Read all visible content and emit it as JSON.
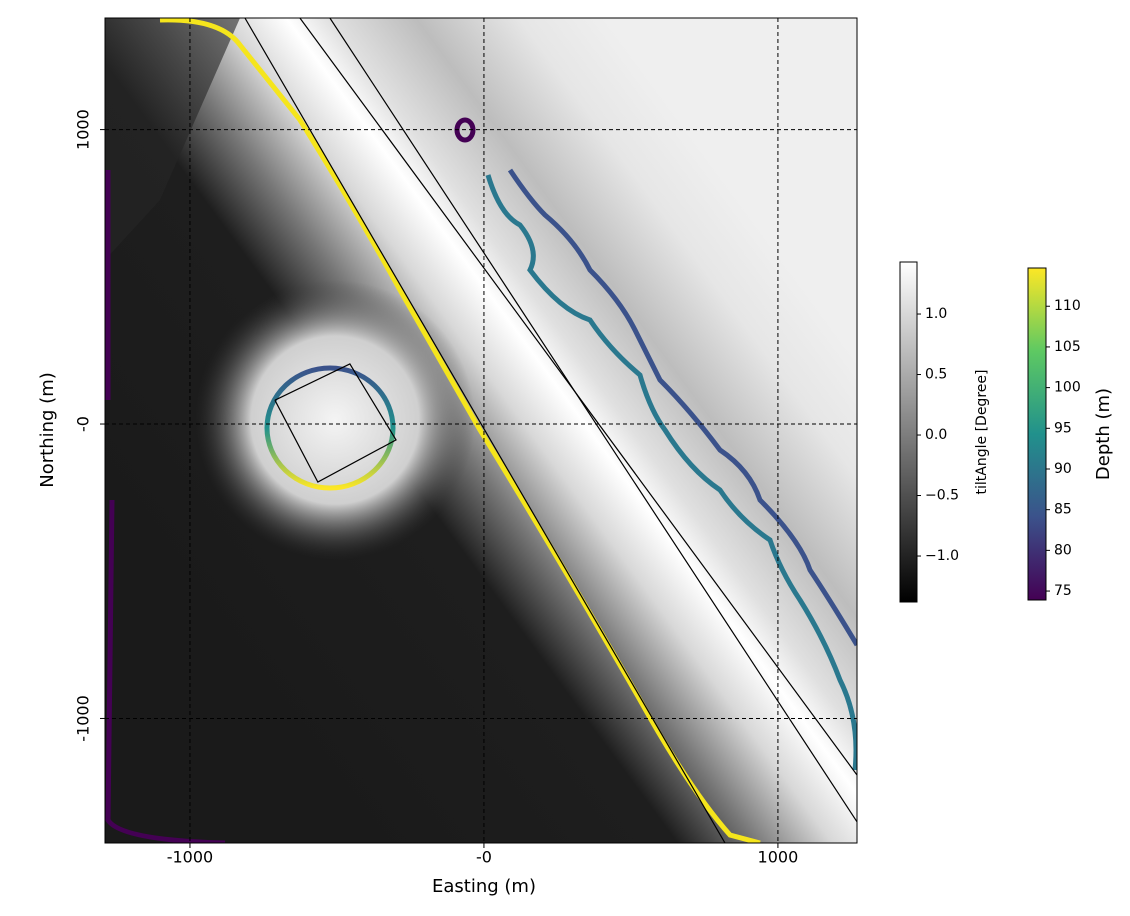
{
  "chart_data": {
    "type": "map",
    "x_label": "Easting (m)",
    "y_label": "Northing (m)",
    "xlim": [
      -1289,
      1269
    ],
    "ylim": [
      -1423,
      1379
    ],
    "xticks": [
      -1000,
      {
        "value": 0,
        "label": "-0"
      },
      1000
    ],
    "yticks": [
      -1000,
      {
        "value": 0,
        "label": "-0"
      },
      1000
    ],
    "grid": true,
    "lines": [
      {
        "color": "#000000",
        "x": [
          -813,
          820
        ],
        "y": [
          1379,
          -1423
        ]
      },
      {
        "color": "#000000",
        "x": [
          -626,
          1269
        ],
        "y": [
          1379,
          -1192
        ]
      },
      {
        "color": "#000000",
        "x": [
          -524,
          1269
        ],
        "y": [
          1379,
          -1351
        ]
      },
      {
        "color": "#000000",
        "x": [
          -711,
          -456,
          -299,
          -565,
          -711
        ],
        "y": [
          81,
          204,
          -54,
          -197,
          81
        ]
      }
    ],
    "colorbars": [
      {
        "label": "tiltAngle [Degree]",
        "colormap": "gray",
        "lim": [
          -1.38,
          1.43
        ],
        "ticks": [
          {
            "value": 1.0,
            "label": "1.0"
          },
          {
            "value": 0.5,
            "label": "0.5"
          },
          {
            "value": 0.0,
            "label": "0.0"
          },
          {
            "value": -0.5,
            "label": "−0.5"
          },
          {
            "value": -1.0,
            "label": "−1.0"
          }
        ]
      },
      {
        "label": "Depth (m)",
        "colormap": "viridis",
        "lim": [
          73.9,
          114.7
        ],
        "ticks": [
          110,
          105,
          100,
          95,
          90,
          85,
          80,
          75
        ]
      }
    ]
  }
}
